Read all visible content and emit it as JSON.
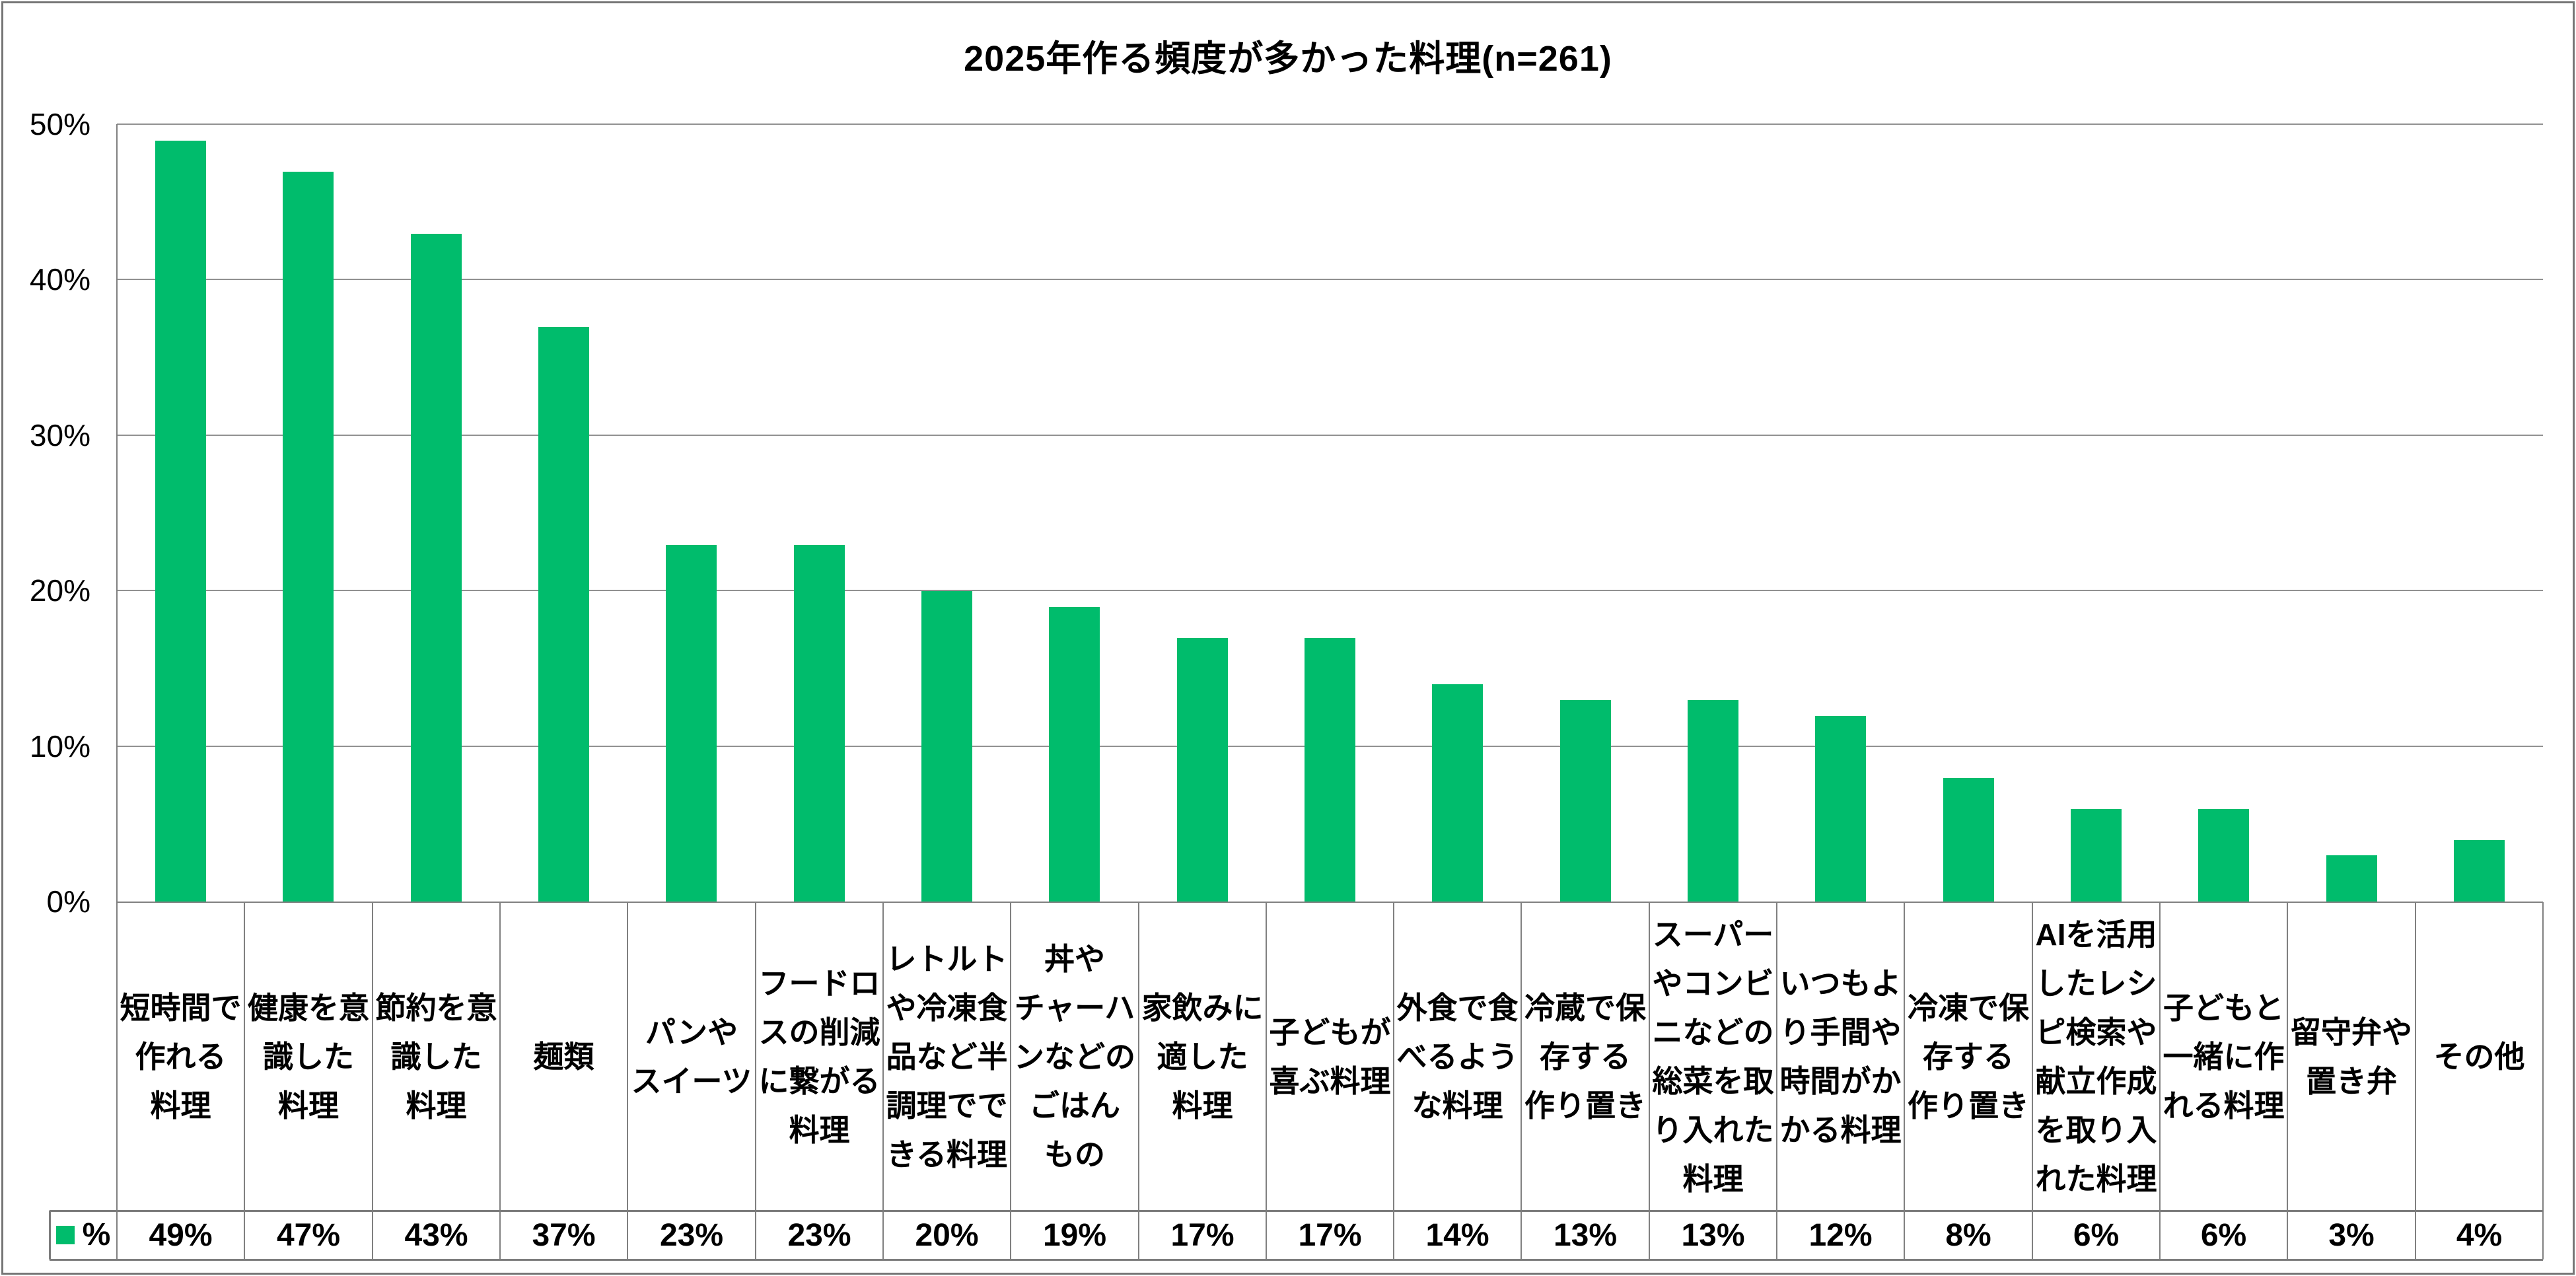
{
  "chart_data": {
    "type": "bar",
    "title": "2025年作る頻度が多かった料理(n=261)",
    "sample_size_note": "n=261",
    "legend": {
      "label": "%",
      "position": "data-table-stub-bottom-left"
    },
    "bar_color": "#00BC6C",
    "grid": true,
    "ylim": [
      0,
      50
    ],
    "y_ticks": [
      "0%",
      "10%",
      "20%",
      "30%",
      "40%",
      "50%"
    ],
    "xlabel": "",
    "ylabel": "",
    "categories": [
      "短時間で作れる料理",
      "健康を意識した料理",
      "節約を意識した料理",
      "麺類",
      "パンやスイーツ",
      "フードロスの削減に繋がる料理",
      "レトルトや冷凍食品など半調理でできる料理",
      "丼やチャーハンなどのごはんもの",
      "家飲みに適した料理",
      "子どもが喜ぶ料理",
      "外食で食べるような料理",
      "冷蔵で保存する作り置き",
      "スーパーやコンビニなどの総菜を取り入れた料理",
      "いつもより手間や時間がかかる料理",
      "冷凍で保存する作り置き",
      "AIを活用したレシピ検索や献立作成を取り入れた料理",
      "子どもと一緒に作れる料理",
      "留守弁や置き弁",
      "その他"
    ],
    "category_display_lines": [
      [
        "短時間で",
        "作れる",
        "料理"
      ],
      [
        "健康を意",
        "識した",
        "料理"
      ],
      [
        "節約を意",
        "識した",
        "料理"
      ],
      [
        "麺類"
      ],
      [
        "パンや",
        "スイーツ"
      ],
      [
        "フードロ",
        "スの削減",
        "に繋がる",
        "料理"
      ],
      [
        "レトルト",
        "や冷凍食",
        "品など半",
        "調理でで",
        "きる料理"
      ],
      [
        "丼や",
        "チャーハ",
        "ンなどの",
        "ごはん",
        "もの"
      ],
      [
        "家飲みに",
        "適した",
        "料理"
      ],
      [
        "子どもが",
        "喜ぶ料理"
      ],
      [
        "外食で食",
        "べるよう",
        "な料理"
      ],
      [
        "冷蔵で保",
        "存する",
        "作り置き"
      ],
      [
        "スーパー",
        "やコンビ",
        "ニなどの",
        "総菜を取",
        "り入れた",
        "料理"
      ],
      [
        "いつもよ",
        "り手間や",
        "時間がか",
        "かる料理"
      ],
      [
        "冷凍で保",
        "存する",
        "作り置き"
      ],
      [
        "AIを活用",
        "したレシ",
        "ピ検索や",
        "献立作成",
        "を取り入",
        "れた料理"
      ],
      [
        "子どもと",
        "一緒に作",
        "れる料理"
      ],
      [
        "留守弁や",
        "置き弁"
      ],
      [
        "その他"
      ]
    ],
    "values": [
      49,
      47,
      43,
      37,
      23,
      23,
      20,
      19,
      17,
      17,
      14,
      13,
      13,
      12,
      8,
      6,
      6,
      3,
      4
    ],
    "value_labels": [
      "49%",
      "47%",
      "43%",
      "37%",
      "23%",
      "23%",
      "20%",
      "19%",
      "17%",
      "17%",
      "14%",
      "13%",
      "13%",
      "12%",
      "8%",
      "6%",
      "6%",
      "3%",
      "4%"
    ]
  },
  "styles": {
    "bar_color": "#00BC6C",
    "gridline_color": "#919191",
    "table_border_color": "#808080",
    "outer_border_color": "#767676",
    "text_color": "#000000"
  }
}
